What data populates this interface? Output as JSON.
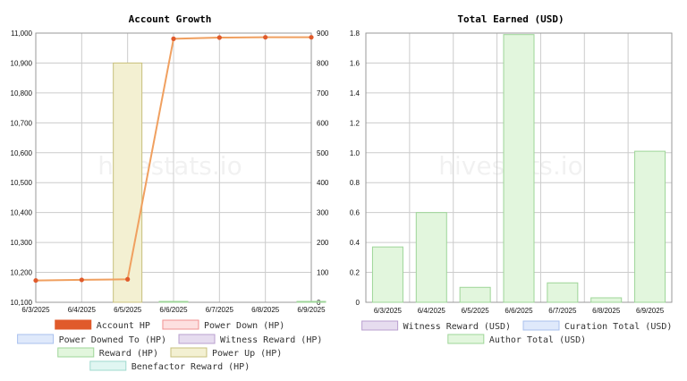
{
  "watermark": "hivestats.io",
  "chart_data": [
    {
      "type": "line",
      "title": "Account Growth",
      "categories": [
        "6/3/2025",
        "6/4/2025",
        "6/5/2025",
        "6/6/2025",
        "6/7/2025",
        "6/8/2025",
        "6/9/2025"
      ],
      "y_left": {
        "min": 10100,
        "max": 11000,
        "ticks": [
          "10,100",
          "10,200",
          "10,300",
          "10,400",
          "10,500",
          "10,600",
          "10,700",
          "10,800",
          "10,900",
          "11,000"
        ]
      },
      "y_right": {
        "min": 0,
        "max": 900,
        "ticks": [
          "0",
          "100",
          "200",
          "300",
          "400",
          "500",
          "600",
          "700",
          "800",
          "900"
        ]
      },
      "grid": true,
      "series": [
        {
          "name": "Account HP",
          "kind": "line",
          "axis": "left",
          "color": "#e05a2b",
          "line_color": "#f0a060",
          "values": [
            10173,
            10175,
            10177,
            10981,
            10985,
            10986,
            10986
          ]
        },
        {
          "name": "Power Down (HP)",
          "kind": "bar",
          "axis": "right",
          "color": "#fde0e0",
          "border": "#f09090",
          "values": [
            0,
            0,
            0,
            0,
            0,
            0,
            0
          ]
        },
        {
          "name": "Power Downed To (HP)",
          "kind": "bar",
          "axis": "right",
          "color": "#dfe9fb",
          "border": "#a8c0ee",
          "values": [
            0,
            0,
            0,
            0,
            0,
            0,
            0
          ]
        },
        {
          "name": "Witness Reward (HP)",
          "kind": "bar",
          "axis": "right",
          "color": "#e6dcef",
          "border": "#b9a0cf",
          "values": [
            0,
            0,
            0,
            0,
            0,
            0,
            0
          ]
        },
        {
          "name": "Reward (HP)",
          "kind": "bar",
          "axis": "right",
          "color": "#e2f6dd",
          "border": "#9ed598",
          "values": [
            0,
            0,
            0,
            1,
            0,
            0,
            1
          ]
        },
        {
          "name": "Power Up (HP)",
          "kind": "bar",
          "axis": "right",
          "color": "#f3f0d2",
          "border": "#c7bf7c",
          "values": [
            0,
            0,
            800,
            0,
            0,
            0,
            0
          ]
        },
        {
          "name": "Benefactor Reward (HP)",
          "kind": "bar",
          "axis": "right",
          "color": "#e0f6f2",
          "border": "#9fd9ce",
          "values": [
            0,
            0,
            0,
            0,
            0,
            0,
            0
          ]
        }
      ],
      "legend": {
        "placement": "bottom",
        "rows": [
          [
            "Account HP",
            "Power Down (HP)"
          ],
          [
            "Power Downed To (HP)",
            "Witness Reward (HP)"
          ],
          [
            "Reward (HP)",
            "Power Up (HP)"
          ],
          [
            "Benefactor Reward (HP)"
          ]
        ]
      }
    },
    {
      "type": "bar",
      "title": "Total Earned (USD)",
      "categories": [
        "6/3/2025",
        "6/4/2025",
        "6/5/2025",
        "6/6/2025",
        "6/7/2025",
        "6/8/2025",
        "6/9/2025"
      ],
      "y": {
        "min": 0,
        "max": 1.8,
        "ticks": [
          "0",
          "0.2",
          "0.4",
          "0.6",
          "0.8",
          "1.0",
          "1.2",
          "1.4",
          "1.6",
          "1.8"
        ]
      },
      "grid": true,
      "stacked": true,
      "series": [
        {
          "name": "Witness Reward (USD)",
          "color": "#e6dcef",
          "border": "#b9a0cf",
          "values": [
            0,
            0,
            0,
            0,
            0,
            0,
            0
          ]
        },
        {
          "name": "Curation Total (USD)",
          "color": "#dfe9fb",
          "border": "#a8c0ee",
          "values": [
            0,
            0,
            0,
            0,
            0,
            0,
            0
          ]
        },
        {
          "name": "Author Total (USD)",
          "color": "#e2f6dd",
          "border": "#9ed598",
          "values": [
            0.37,
            0.6,
            0.1,
            1.79,
            0.13,
            0.03,
            1.01
          ]
        }
      ],
      "legend": {
        "placement": "bottom",
        "rows": [
          [
            "Witness Reward (USD)",
            "Curation Total (USD)"
          ],
          [
            "Author Total (USD)"
          ]
        ]
      }
    }
  ]
}
